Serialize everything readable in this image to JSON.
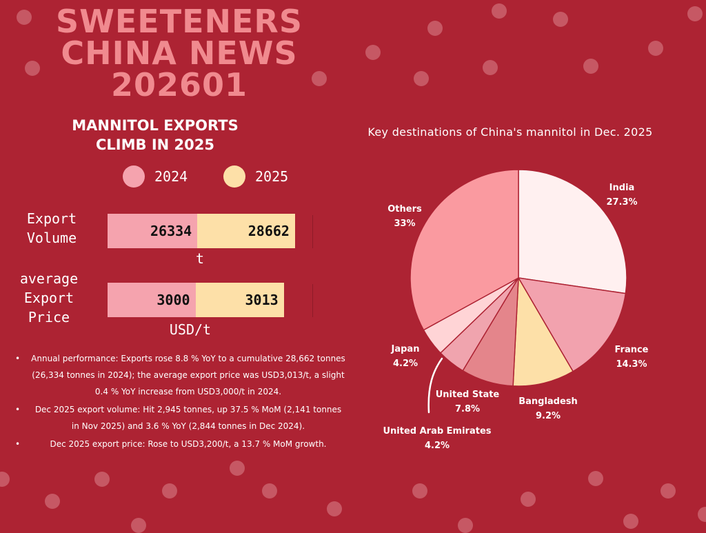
{
  "header": {
    "title_lines": [
      "SWEETENERS",
      "CHINA NEWS",
      "202601"
    ]
  },
  "section": {
    "title_lines": [
      "MANNITOL EXPORTS",
      "CLIMB IN 2025"
    ]
  },
  "colors": {
    "background": "#ad2333",
    "title": "#f08a8f",
    "dots": "#cf6b76",
    "series_2024": "#f5a3ae",
    "series_2025": "#fde0a8"
  },
  "bar_chart": {
    "type": "bar",
    "legend": [
      "2024",
      "2025"
    ],
    "rows": [
      {
        "label_lines": [
          "Export",
          "Volume"
        ],
        "unit": "t",
        "values": [
          26334,
          28662
        ],
        "value_labels": [
          "26334",
          "28662"
        ]
      },
      {
        "label_lines": [
          "average",
          "Export",
          "Price"
        ],
        "unit": "USD/t",
        "values": [
          3000,
          3013
        ],
        "value_labels": [
          "3000",
          "3013"
        ]
      }
    ]
  },
  "bullets": [
    "Annual performance: Exports rose 8.8 % YoY to a cumulative 28,662 tonnes (26,334 tonnes in 2024); the average export price was USD3,013/t, a slight 0.4 % YoY increase from USD3,000/t in 2024.",
    "Dec 2025 export volume: Hit 2,945 tonnes, up 37.5 % MoM (2,141 tonnes in Nov 2025) and 3.6 % YoY (2,844 tonnes in Dec 2024).",
    "Dec 2025 export price: Rose to USD3,200/t, a 13.7 % MoM growth."
  ],
  "bullet_char": "•",
  "chart_data": {
    "type": "pie",
    "title": "Key destinations of China's mannitol in Dec. 2025",
    "slices": [
      {
        "label": "India",
        "pct_label": "27.3%",
        "value": 27.3,
        "color": "#fff0f0"
      },
      {
        "label": "France",
        "pct_label": "14.3%",
        "value": 14.3,
        "color": "#f2a2ae"
      },
      {
        "label": "Bangladesh",
        "pct_label": "9.2%",
        "value": 9.2,
        "color": "#fde0a8"
      },
      {
        "label": "United State",
        "pct_label": "7.8%",
        "value": 7.8,
        "color": "#e4858b"
      },
      {
        "label": "United Arab Emirates",
        "pct_label": "4.2%",
        "value": 4.2,
        "color": "#f0a4ae"
      },
      {
        "label": "Japan",
        "pct_label": "4.2%",
        "value": 4.2,
        "color": "#ffd4d6"
      },
      {
        "label": "Others",
        "pct_label": "33%",
        "value": 33,
        "color": "#fa9aa0"
      }
    ]
  }
}
